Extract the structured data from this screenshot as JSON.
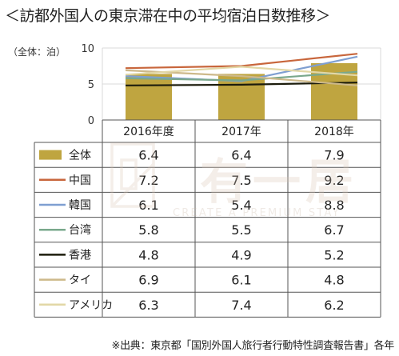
{
  "title": "＜訪都外国人の東京滞在中の平均宿泊日数推移＞",
  "unit_label": "（全体：泊）",
  "source": "※出典：東京都「国別外国人旅行者行動特性調査報告書」各年",
  "watermark": {
    "brand": "有一居",
    "tagline": "CREATE A PREMIUM STAY"
  },
  "chart_data": {
    "type": "bar",
    "categories": [
      "2016年度",
      "2017年",
      "2018年"
    ],
    "ylim": [
      0,
      10
    ],
    "yticks": [
      0,
      5,
      10
    ],
    "grid": true,
    "legend_placement": "data-table-left",
    "series": [
      {
        "name": "全体",
        "kind": "bar",
        "color": "#bfa540",
        "values": [
          6.4,
          6.4,
          7.9
        ]
      },
      {
        "name": "中国",
        "kind": "line",
        "color": "#c8663c",
        "values": [
          7.2,
          7.5,
          9.2
        ]
      },
      {
        "name": "韓国",
        "kind": "line",
        "color": "#7f9fd1",
        "values": [
          6.1,
          5.4,
          8.8
        ]
      },
      {
        "name": "台湾",
        "kind": "line",
        "color": "#7aa88c",
        "values": [
          5.8,
          5.5,
          6.7
        ]
      },
      {
        "name": "香港",
        "kind": "line",
        "color": "#1c1c0c",
        "values": [
          4.8,
          4.9,
          5.2
        ]
      },
      {
        "name": "タイ",
        "kind": "line",
        "color": "#cdb98a",
        "values": [
          6.9,
          6.1,
          4.8
        ]
      },
      {
        "name": "アメリカ",
        "kind": "line",
        "color": "#e2d7a6",
        "values": [
          6.3,
          7.4,
          6.2
        ]
      }
    ]
  }
}
